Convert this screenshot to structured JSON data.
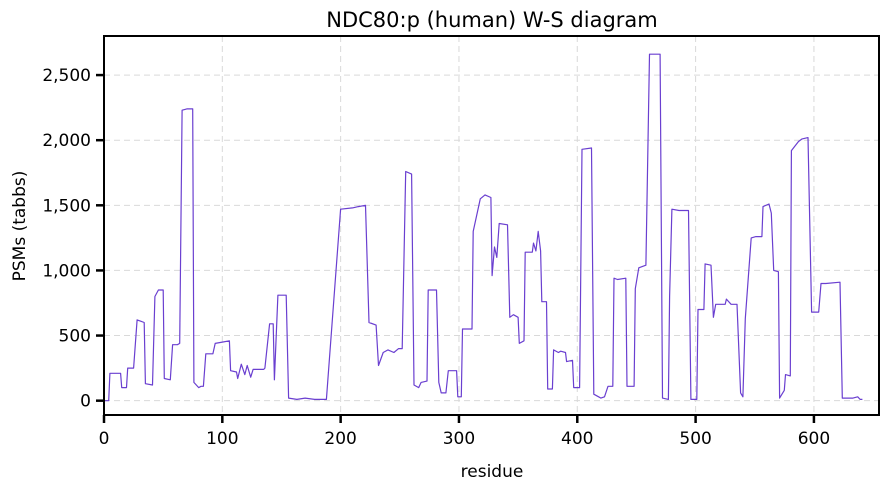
{
  "chart_data": {
    "type": "line",
    "title": "NDC80:p (human) W-S diagram",
    "xlabel": "residue",
    "ylabel": "PSMs (tabbs)",
    "xlim": [
      0,
      655
    ],
    "ylim": [
      -110,
      2800
    ],
    "x_ticks": [
      0,
      100,
      200,
      300,
      400,
      500,
      600
    ],
    "x_tick_labels": [
      "0",
      "100",
      "200",
      "300",
      "400",
      "500",
      "600"
    ],
    "y_ticks": [
      0,
      500,
      1000,
      1500,
      2000,
      2500
    ],
    "y_tick_labels": [
      "0",
      "500",
      "1,000",
      "1,500",
      "2,000",
      "2,500"
    ],
    "grid": true,
    "legend": "none",
    "series": [
      {
        "color": "#6a3fd0",
        "points": [
          [
            0,
            0
          ],
          [
            4,
            0
          ],
          [
            5,
            210
          ],
          [
            14,
            210
          ],
          [
            15,
            100
          ],
          [
            19,
            100
          ],
          [
            20,
            250
          ],
          [
            25,
            250
          ],
          [
            28,
            620
          ],
          [
            31,
            610
          ],
          [
            34,
            600
          ],
          [
            35,
            130
          ],
          [
            41,
            120
          ],
          [
            43,
            800
          ],
          [
            46,
            850
          ],
          [
            50,
            850
          ],
          [
            51,
            170
          ],
          [
            56,
            160
          ],
          [
            58,
            430
          ],
          [
            62,
            430
          ],
          [
            64,
            440
          ],
          [
            66,
            2230
          ],
          [
            70,
            2240
          ],
          [
            75,
            2240
          ],
          [
            76,
            140
          ],
          [
            80,
            100
          ],
          [
            82,
            110
          ],
          [
            84,
            110
          ],
          [
            86,
            360
          ],
          [
            92,
            360
          ],
          [
            94,
            440
          ],
          [
            100,
            450
          ],
          [
            106,
            460
          ],
          [
            107,
            230
          ],
          [
            112,
            220
          ],
          [
            113,
            170
          ],
          [
            116,
            280
          ],
          [
            119,
            200
          ],
          [
            121,
            270
          ],
          [
            124,
            180
          ],
          [
            126,
            240
          ],
          [
            135,
            240
          ],
          [
            136,
            250
          ],
          [
            140,
            590
          ],
          [
            143,
            590
          ],
          [
            144,
            160
          ],
          [
            147,
            810
          ],
          [
            154,
            810
          ],
          [
            156,
            20
          ],
          [
            163,
            10
          ],
          [
            170,
            20
          ],
          [
            178,
            10
          ],
          [
            184,
            10
          ],
          [
            188,
            10
          ],
          [
            200,
            1470
          ],
          [
            210,
            1480
          ],
          [
            215,
            1490
          ],
          [
            221,
            1500
          ],
          [
            224,
            600
          ],
          [
            230,
            580
          ],
          [
            232,
            270
          ],
          [
            236,
            370
          ],
          [
            240,
            390
          ],
          [
            245,
            370
          ],
          [
            249,
            400
          ],
          [
            252,
            400
          ],
          [
            255,
            1760
          ],
          [
            260,
            1740
          ],
          [
            262,
            120
          ],
          [
            266,
            100
          ],
          [
            268,
            140
          ],
          [
            273,
            150
          ],
          [
            274,
            850
          ],
          [
            281,
            850
          ],
          [
            283,
            140
          ],
          [
            285,
            60
          ],
          [
            289,
            60
          ],
          [
            291,
            230
          ],
          [
            298,
            230
          ],
          [
            299,
            30
          ],
          [
            302,
            30
          ],
          [
            303,
            550
          ],
          [
            311,
            550
          ],
          [
            312,
            1300
          ],
          [
            318,
            1550
          ],
          [
            322,
            1580
          ],
          [
            327,
            1560
          ],
          [
            328,
            960
          ],
          [
            330,
            1180
          ],
          [
            332,
            1100
          ],
          [
            334,
            1360
          ],
          [
            341,
            1350
          ],
          [
            343,
            640
          ],
          [
            346,
            660
          ],
          [
            350,
            640
          ],
          [
            351,
            440
          ],
          [
            355,
            460
          ],
          [
            356,
            1140
          ],
          [
            362,
            1140
          ],
          [
            363,
            1210
          ],
          [
            365,
            1150
          ],
          [
            367,
            1300
          ],
          [
            369,
            1150
          ],
          [
            370,
            760
          ],
          [
            374,
            760
          ],
          [
            375,
            90
          ],
          [
            379,
            90
          ],
          [
            380,
            390
          ],
          [
            384,
            370
          ],
          [
            386,
            380
          ],
          [
            390,
            370
          ],
          [
            391,
            300
          ],
          [
            396,
            310
          ],
          [
            397,
            100
          ],
          [
            402,
            100
          ],
          [
            404,
            1930
          ],
          [
            412,
            1940
          ],
          [
            414,
            50
          ],
          [
            418,
            30
          ],
          [
            420,
            20
          ],
          [
            423,
            30
          ],
          [
            426,
            110
          ],
          [
            430,
            110
          ],
          [
            431,
            940
          ],
          [
            434,
            930
          ],
          [
            441,
            940
          ],
          [
            442,
            110
          ],
          [
            448,
            110
          ],
          [
            449,
            860
          ],
          [
            452,
            1020
          ],
          [
            458,
            1040
          ],
          [
            461,
            2660
          ],
          [
            470,
            2660
          ],
          [
            472,
            20
          ],
          [
            477,
            10
          ],
          [
            478,
            800
          ],
          [
            480,
            1470
          ],
          [
            486,
            1460
          ],
          [
            494,
            1460
          ],
          [
            496,
            10
          ],
          [
            501,
            10
          ],
          [
            502,
            700
          ],
          [
            507,
            700
          ],
          [
            508,
            1050
          ],
          [
            513,
            1040
          ],
          [
            515,
            640
          ],
          [
            517,
            740
          ],
          [
            525,
            740
          ],
          [
            526,
            780
          ],
          [
            530,
            740
          ],
          [
            535,
            740
          ],
          [
            538,
            60
          ],
          [
            540,
            30
          ],
          [
            542,
            630
          ],
          [
            547,
            1250
          ],
          [
            551,
            1260
          ],
          [
            556,
            1260
          ],
          [
            557,
            1490
          ],
          [
            562,
            1510
          ],
          [
            564,
            1440
          ],
          [
            566,
            1000
          ],
          [
            570,
            990
          ],
          [
            571,
            20
          ],
          [
            575,
            80
          ],
          [
            576,
            200
          ],
          [
            580,
            190
          ],
          [
            581,
            1920
          ],
          [
            587,
            1990
          ],
          [
            590,
            2010
          ],
          [
            595,
            2020
          ],
          [
            598,
            680
          ],
          [
            604,
            680
          ],
          [
            606,
            900
          ],
          [
            610,
            900
          ],
          [
            622,
            910
          ],
          [
            624,
            20
          ],
          [
            633,
            20
          ],
          [
            637,
            30
          ],
          [
            639,
            10
          ],
          [
            641,
            10
          ]
        ]
      }
    ]
  }
}
